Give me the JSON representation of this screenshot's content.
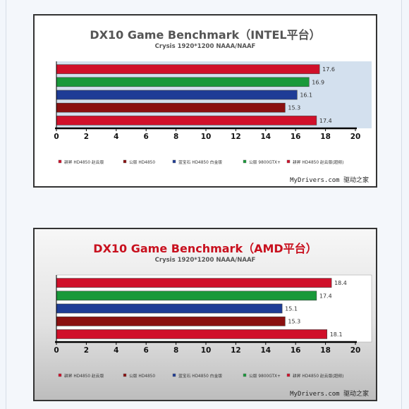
{
  "chart_data": [
    {
      "type": "bar",
      "orientation": "horizontal",
      "title": "DX10 Game Benchmark（INTEL平台）",
      "subtitle": "Crysis    1920*1200 NAAA/NAAF",
      "xlim": [
        0,
        20
      ],
      "xticks": [
        "0",
        "2",
        "4",
        "6",
        "8",
        "10",
        "12",
        "14",
        "16",
        "18",
        "20"
      ],
      "grid": false,
      "legend_position": "bottom",
      "watermark": "MyDrivers.com 驱动之家",
      "series": [
        {
          "name": "耕昇 HD4850 赵云版",
          "value": 17.6,
          "label": "17.6",
          "color": "#d0102a"
        },
        {
          "name": "公版 HD4850",
          "value": 16.9,
          "label": "16.9",
          "color": "#19993a"
        },
        {
          "name": "蓝宝石 HD4850 白金版",
          "value": 16.1,
          "label": "16.1",
          "color": "#1e3c96"
        },
        {
          "name": "公版 9800GTX+",
          "value": 15.3,
          "label": "15.3",
          "color": "#8a1010"
        },
        {
          "name": "耕昇 HD4850 赵云版(超频)",
          "value": 17.4,
          "label": "17.4",
          "color": "#d0102a"
        }
      ],
      "legend_colors": [
        "#d0102a",
        "#8a1010",
        "#1e3c96",
        "#19993a",
        "#d0102a"
      ],
      "title_color": "#555555",
      "plot_bg": "#d3e0ee"
    },
    {
      "type": "bar",
      "orientation": "horizontal",
      "title": "DX10 Game Benchmark（AMD平台）",
      "subtitle": "Crysis    1920*1200 NAAA/NAAF",
      "xlim": [
        0,
        20
      ],
      "xticks": [
        "0",
        "2",
        "4",
        "6",
        "8",
        "10",
        "12",
        "14",
        "16",
        "18",
        "20"
      ],
      "grid": false,
      "legend_position": "bottom",
      "watermark": "MyDrivers.com 驱动之家",
      "series": [
        {
          "name": "耕昇 HD4850 赵云版",
          "value": 18.4,
          "label": "18.4",
          "color": "#d0102a"
        },
        {
          "name": "公版 HD4850",
          "value": 17.4,
          "label": "17.4",
          "color": "#19993a"
        },
        {
          "name": "蓝宝石 HD4850 白金版",
          "value": 15.1,
          "label": "15.1",
          "color": "#1e3c96"
        },
        {
          "name": "公版 9800GTX+",
          "value": 15.3,
          "label": "15.3",
          "color": "#8a1010"
        },
        {
          "name": "耕昇 HD4850 赵云版(超频)",
          "value": 18.1,
          "label": "18.1",
          "color": "#d0102a"
        }
      ],
      "legend_colors": [
        "#d0102a",
        "#8a1010",
        "#1e3c96",
        "#19993a",
        "#d0102a"
      ],
      "title_color": "#c8101e",
      "plot_bg": "#ffffff"
    }
  ]
}
